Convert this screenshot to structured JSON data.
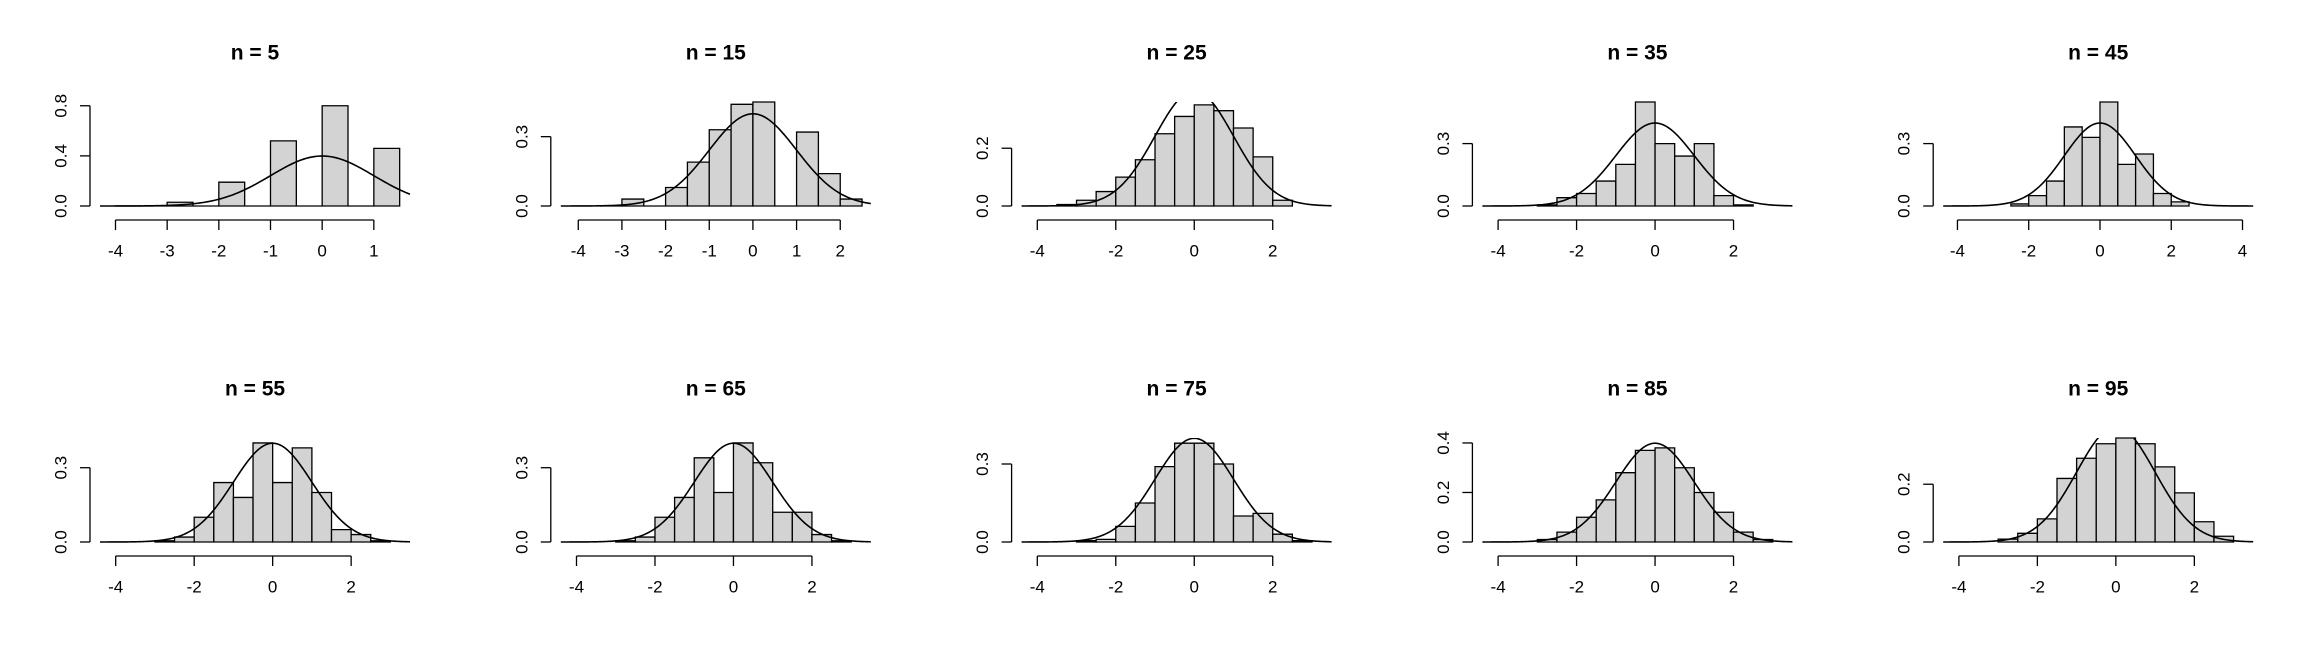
{
  "chart_data": [
    {
      "type": "histogram",
      "title": "n = 5",
      "color": "#d3d3d3",
      "curve": {
        "mean": 0,
        "sd": 1
      },
      "bins": [
        -4,
        -3.5,
        -3,
        -2.5,
        -2,
        -1.5,
        -1,
        -0.5,
        0,
        0.5,
        1,
        1.5
      ],
      "counts": [
        0,
        0,
        0.03,
        0,
        0.19,
        0,
        0.52,
        0,
        0.8,
        0,
        0.46
      ],
      "xlim": [
        -4.3,
        1.7
      ],
      "xticks": [
        -4,
        -3,
        -2,
        -1,
        0,
        1
      ],
      "ylim": [
        0,
        0.83
      ],
      "yticks": [
        {
          "value": 0,
          "label": "0.0"
        },
        0.4,
        0.8
      ]
    },
    {
      "type": "histogram",
      "title": "n = 15",
      "color": "#d3d3d3",
      "curve": {
        "mean": 0,
        "sd": 1
      },
      "bins": [
        -3.5,
        -3,
        -2.5,
        -2,
        -1.5,
        -1,
        -0.5,
        0,
        0.5,
        1,
        1.5,
        2,
        2.5
      ],
      "counts": [
        0,
        0.03,
        0,
        0.08,
        0.19,
        0.33,
        0.44,
        0.45,
        0,
        0.32,
        0.14,
        0.03
      ],
      "xlim": [
        -4.4,
        2.7
      ],
      "xticks": [
        -4,
        -3,
        -2,
        -1,
        0,
        1,
        2
      ],
      "ylim": [
        0,
        0.45
      ],
      "yticks": [
        {
          "value": 0,
          "label": "0.0"
        },
        0.3
      ]
    },
    {
      "type": "histogram",
      "title": "n = 25",
      "color": "#d3d3d3",
      "curve": {
        "mean": 0,
        "sd": 1
      },
      "bins": [
        -3.5,
        -3,
        -2.5,
        -2,
        -1.5,
        -1,
        -0.5,
        0,
        0.5,
        1,
        1.5,
        2,
        2.5
      ],
      "counts": [
        0.005,
        0.02,
        0.05,
        0.1,
        0.16,
        0.25,
        0.31,
        0.35,
        0.33,
        0.27,
        0.17,
        0.02
      ],
      "xlim": [
        -4.4,
        3.5
      ],
      "xticks": [
        -4,
        -2,
        0,
        2
      ],
      "ylim": [
        0,
        0.36
      ],
      "yticks": [
        {
          "value": 0,
          "label": "0.0"
        },
        0.2
      ]
    },
    {
      "type": "histogram",
      "title": "n = 35",
      "color": "#d3d3d3",
      "curve": {
        "mean": 0,
        "sd": 1
      },
      "bins": [
        -3,
        -2.5,
        -2,
        -1.5,
        -1,
        -0.5,
        0,
        0.5,
        1,
        1.5,
        2,
        2.5
      ],
      "counts": [
        0.005,
        0.04,
        0.06,
        0.12,
        0.2,
        0.5,
        0.3,
        0.24,
        0.3,
        0.05,
        0.005
      ],
      "xlim": [
        -4.4,
        3.5
      ],
      "xticks": [
        -4,
        -2,
        0,
        2
      ],
      "ylim": [
        0,
        0.5
      ],
      "yticks": [
        {
          "value": 0,
          "label": "0.0"
        },
        0.3
      ]
    },
    {
      "type": "histogram",
      "title": "n = 45",
      "color": "#d3d3d3",
      "curve": {
        "mean": 0,
        "sd": 1
      },
      "bins": [
        -2.5,
        -2,
        -1.5,
        -1,
        -0.5,
        0,
        0.5,
        1,
        1.5,
        2,
        2.5
      ],
      "counts": [
        0.01,
        0.05,
        0.12,
        0.38,
        0.33,
        0.5,
        0.2,
        0.25,
        0.06,
        0.02
      ],
      "xlim": [
        -4.4,
        4.3
      ],
      "xticks": [
        -4,
        -2,
        0,
        2,
        4
      ],
      "ylim": [
        0,
        0.5
      ],
      "yticks": [
        {
          "value": 0,
          "label": "0.0"
        },
        0.3
      ]
    },
    {
      "type": "histogram",
      "title": "n = 55",
      "color": "#d3d3d3",
      "curve": {
        "mean": 0,
        "sd": 1
      },
      "bins": [
        -3,
        -2.5,
        -2,
        -1.5,
        -1,
        -0.5,
        0,
        0.5,
        1,
        1.5,
        2,
        2.5,
        3
      ],
      "counts": [
        0.005,
        0.02,
        0.1,
        0.24,
        0.18,
        0.4,
        0.24,
        0.38,
        0.2,
        0.05,
        0.03,
        0.005
      ],
      "xlim": [
        -4.4,
        3.5
      ],
      "xticks": [
        -4,
        -2,
        0,
        2
      ],
      "ylim": [
        0,
        0.42
      ],
      "yticks": [
        {
          "value": 0,
          "label": "0.0"
        },
        0.3
      ]
    },
    {
      "type": "histogram",
      "title": "n = 65",
      "color": "#d3d3d3",
      "curve": {
        "mean": 0,
        "sd": 1
      },
      "bins": [
        -3,
        -2.5,
        -2,
        -1.5,
        -1,
        -0.5,
        0,
        0.5,
        1,
        1.5,
        2,
        2.5,
        3
      ],
      "counts": [
        0.005,
        0.02,
        0.1,
        0.18,
        0.34,
        0.2,
        0.4,
        0.32,
        0.12,
        0.12,
        0.03,
        0.005
      ],
      "xlim": [
        -4.4,
        3.5
      ],
      "xticks": [
        -4,
        -2,
        0,
        2
      ],
      "ylim": [
        0,
        0.42
      ],
      "yticks": [
        {
          "value": 0,
          "label": "0.0"
        },
        0.3
      ]
    },
    {
      "type": "histogram",
      "title": "n = 75",
      "color": "#d3d3d3",
      "curve": {
        "mean": 0,
        "sd": 1
      },
      "bins": [
        -3,
        -2.5,
        -2,
        -1.5,
        -1,
        -0.5,
        0,
        0.5,
        1,
        1.5,
        2,
        2.5,
        3
      ],
      "counts": [
        0.005,
        0.01,
        0.06,
        0.15,
        0.29,
        0.38,
        0.38,
        0.3,
        0.1,
        0.11,
        0.03,
        0.005
      ],
      "xlim": [
        -4.4,
        3.5
      ],
      "xticks": [
        -4,
        -2,
        0,
        2
      ],
      "ylim": [
        0,
        0.4
      ],
      "yticks": [
        {
          "value": 0,
          "label": "0.0"
        },
        0.3
      ]
    },
    {
      "type": "histogram",
      "title": "n = 85",
      "color": "#d3d3d3",
      "curve": {
        "mean": 0,
        "sd": 1
      },
      "bins": [
        -3,
        -2.5,
        -2,
        -1.5,
        -1,
        -0.5,
        0,
        0.5,
        1,
        1.5,
        2,
        2.5,
        3
      ],
      "counts": [
        0.01,
        0.04,
        0.1,
        0.17,
        0.28,
        0.37,
        0.38,
        0.3,
        0.2,
        0.12,
        0.04,
        0.01
      ],
      "xlim": [
        -4.4,
        3.5
      ],
      "xticks": [
        -4,
        -2,
        0,
        2
      ],
      "ylim": [
        0,
        0.42
      ],
      "yticks": [
        {
          "value": 0,
          "label": "0.0"
        },
        0.2,
        0.4
      ]
    },
    {
      "type": "histogram",
      "title": "n = 95",
      "color": "#d3d3d3",
      "curve": {
        "mean": 0,
        "sd": 1
      },
      "bins": [
        -3,
        -2.5,
        -2,
        -1.5,
        -1,
        -0.5,
        0,
        0.5,
        1,
        1.5,
        2,
        2.5,
        3
      ],
      "counts": [
        0.01,
        0.03,
        0.08,
        0.22,
        0.29,
        0.34,
        0.36,
        0.34,
        0.26,
        0.17,
        0.07,
        0.02
      ],
      "xlim": [
        -4.4,
        3.5
      ],
      "xticks": [
        -4,
        -2,
        0,
        2
      ],
      "ylim": [
        0,
        0.36
      ],
      "yticks": [
        {
          "value": 0,
          "label": "0.0"
        },
        0.2
      ]
    }
  ]
}
